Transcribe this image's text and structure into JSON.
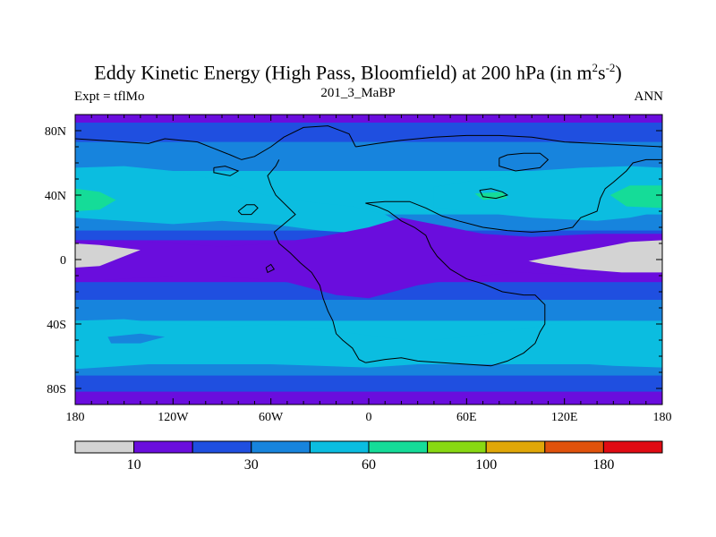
{
  "title": {
    "main": "Eddy Kinetic Energy (High Pass, Bloomfield) at 200 hPa (in m",
    "sup1": "2",
    "mid": "s",
    "sup2": "-2",
    "end": ")"
  },
  "left_label": "Expt = tflMo",
  "center_label": "201_3_MaBP",
  "right_label": "ANN",
  "chart_data": {
    "type": "heatmap",
    "xlim": [
      -180,
      180
    ],
    "ylim": [
      -90,
      90
    ],
    "x_ticks": [
      "180",
      "120W",
      "60W",
      "0",
      "60E",
      "120E",
      "180"
    ],
    "y_ticks": [
      "80N",
      "40N",
      "0",
      "40S",
      "80S"
    ],
    "colorbar": {
      "colors": [
        "#d3d3d3",
        "#6a0ddd",
        "#1f4fe0",
        "#1784dd",
        "#0bbde0",
        "#15dc98",
        "#88d812",
        "#e0a708",
        "#e0520c",
        "#e00b13"
      ],
      "labels": [
        "10",
        "30",
        "60",
        "100",
        "180"
      ]
    },
    "bands": [
      {
        "from": 90,
        "to": 85,
        "color": "#6a0ddd"
      },
      {
        "from": 85,
        "to": 73,
        "color": "#1f4fe0"
      },
      {
        "from": 73,
        "to": 55,
        "color": "#1784dd"
      },
      {
        "from": 55,
        "to": 28,
        "color": "#0bbde0"
      },
      {
        "from": 28,
        "to": 18,
        "color": "#1784dd"
      },
      {
        "from": 18,
        "to": 12,
        "color": "#1f4fe0"
      },
      {
        "from": 12,
        "to": -14,
        "color": "#6a0ddd"
      },
      {
        "from": -14,
        "to": -25,
        "color": "#1f4fe0"
      },
      {
        "from": -25,
        "to": -38,
        "color": "#1784dd"
      },
      {
        "from": -38,
        "to": -65,
        "color": "#0bbde0"
      },
      {
        "from": -65,
        "to": -72,
        "color": "#1784dd"
      },
      {
        "from": -72,
        "to": -82,
        "color": "#1f4fe0"
      },
      {
        "from": -82,
        "to": -90,
        "color": "#6a0ddd"
      }
    ],
    "regions": [
      {
        "color": "#0bbde0",
        "points": [
          [
            -180,
            57
          ],
          [
            -150,
            58
          ],
          [
            -120,
            55
          ],
          [
            -95,
            50
          ],
          [
            -75,
            43
          ],
          [
            -55,
            38
          ],
          [
            -30,
            35
          ],
          [
            -10,
            33
          ],
          [
            10,
            28
          ],
          [
            20,
            22
          ],
          [
            0,
            16
          ],
          [
            -30,
            18
          ],
          [
            -60,
            22
          ],
          [
            -90,
            24
          ],
          [
            -120,
            22
          ],
          [
            -150,
            24
          ],
          [
            -180,
            26
          ]
        ]
      },
      {
        "color": "#0bbde0",
        "points": [
          [
            40,
            45
          ],
          [
            70,
            50
          ],
          [
            100,
            55
          ],
          [
            130,
            57
          ],
          [
            160,
            58
          ],
          [
            180,
            57
          ],
          [
            180,
            30
          ],
          [
            160,
            26
          ],
          [
            140,
            24
          ],
          [
            120,
            25
          ],
          [
            100,
            26
          ],
          [
            80,
            28
          ],
          [
            60,
            30
          ],
          [
            40,
            32
          ]
        ]
      },
      {
        "color": "#15dc98",
        "points": [
          [
            -180,
            44
          ],
          [
            -165,
            42
          ],
          [
            -155,
            37
          ],
          [
            -165,
            31
          ],
          [
            -180,
            30
          ]
        ]
      },
      {
        "color": "#15dc98",
        "points": [
          [
            180,
            46
          ],
          [
            160,
            46
          ],
          [
            148,
            40
          ],
          [
            158,
            33
          ],
          [
            180,
            32
          ]
        ]
      },
      {
        "color": "#15dc98",
        "points": [
          [
            65,
            41
          ],
          [
            82,
            42
          ],
          [
            85,
            38
          ],
          [
            70,
            37
          ]
        ]
      },
      {
        "color": "#6a0ddd",
        "points": [
          [
            -180,
            12
          ],
          [
            -150,
            12
          ],
          [
            -120,
            10
          ],
          [
            -90,
            8
          ],
          [
            -60,
            10
          ],
          [
            -30,
            14
          ],
          [
            0,
            20
          ],
          [
            20,
            26
          ],
          [
            40,
            22
          ],
          [
            70,
            16
          ],
          [
            100,
            14
          ],
          [
            140,
            16
          ],
          [
            180,
            16
          ],
          [
            180,
            -13
          ],
          [
            150,
            -11
          ],
          [
            120,
            -9
          ],
          [
            90,
            -8
          ],
          [
            60,
            -11
          ],
          [
            30,
            -16
          ],
          [
            0,
            -24
          ],
          [
            -20,
            -22
          ],
          [
            -50,
            -14
          ],
          [
            -90,
            -10
          ],
          [
            -120,
            -10
          ],
          [
            -150,
            -12
          ],
          [
            -180,
            -14
          ]
        ]
      },
      {
        "color": "#d3d3d3",
        "points": [
          [
            -180,
            10
          ],
          [
            -165,
            9
          ],
          [
            -140,
            6
          ],
          [
            -150,
            2
          ],
          [
            -165,
            -4
          ],
          [
            -180,
            -5
          ]
        ]
      },
      {
        "color": "#d3d3d3",
        "points": [
          [
            180,
            12
          ],
          [
            160,
            11
          ],
          [
            140,
            7
          ],
          [
            118,
            3
          ],
          [
            98,
            -1
          ],
          [
            108,
            -3
          ],
          [
            130,
            -6
          ],
          [
            155,
            -8
          ],
          [
            180,
            -8
          ]
        ]
      },
      {
        "color": "#0bbde0",
        "points": [
          [
            -180,
            -38
          ],
          [
            -150,
            -37
          ],
          [
            -120,
            -40
          ],
          [
            -90,
            -42
          ],
          [
            -60,
            -40
          ],
          [
            -30,
            -43
          ],
          [
            0,
            -47
          ],
          [
            30,
            -51
          ],
          [
            60,
            -48
          ],
          [
            100,
            -42
          ],
          [
            130,
            -38
          ],
          [
            160,
            -38
          ],
          [
            180,
            -40
          ],
          [
            180,
            -67
          ],
          [
            150,
            -66
          ],
          [
            120,
            -64
          ],
          [
            90,
            -62
          ],
          [
            60,
            -63
          ],
          [
            30,
            -65
          ],
          [
            0,
            -67
          ],
          [
            -30,
            -66
          ],
          [
            -60,
            -65
          ],
          [
            -90,
            -63
          ],
          [
            -120,
            -64
          ],
          [
            -150,
            -66
          ],
          [
            -180,
            -68
          ]
        ]
      },
      {
        "color": "#1784dd",
        "points": [
          [
            -160,
            -48
          ],
          [
            -140,
            -46
          ],
          [
            -125,
            -48
          ],
          [
            -140,
            -52
          ],
          [
            -158,
            -52
          ]
        ]
      }
    ],
    "outlines": [
      [
        [
          -180,
          75
        ],
        [
          -165,
          74
        ],
        [
          -150,
          73
        ],
        [
          -135,
          72
        ],
        [
          -125,
          75
        ],
        [
          -105,
          73
        ],
        [
          -95,
          69
        ],
        [
          -85,
          65
        ],
        [
          -78,
          62
        ],
        [
          -70,
          64
        ],
        [
          -60,
          70
        ],
        [
          -52,
          76
        ],
        [
          -40,
          82
        ],
        [
          -25,
          83
        ],
        [
          -12,
          78
        ],
        [
          -8,
          70
        ]
      ],
      [
        [
          -60,
          46
        ],
        [
          -62,
          52
        ],
        [
          -57,
          58
        ],
        [
          -55,
          62
        ]
      ],
      [
        [
          -60,
          46
        ],
        [
          -57,
          40
        ],
        [
          -50,
          33
        ],
        [
          -45,
          28
        ],
        [
          -52,
          22
        ],
        [
          -58,
          17
        ]
      ],
      [
        [
          -58,
          17
        ],
        [
          -55,
          10
        ],
        [
          -48,
          4
        ],
        [
          -42,
          -2
        ],
        [
          -35,
          -8
        ],
        [
          -30,
          -16
        ],
        [
          -28,
          -24
        ],
        [
          -25,
          -32
        ],
        [
          -22,
          -38
        ],
        [
          -20,
          -46
        ],
        [
          -16,
          -50
        ],
        [
          -10,
          -55
        ],
        [
          -6,
          -62
        ],
        [
          -2,
          -64
        ]
      ],
      [
        [
          -2,
          -64
        ],
        [
          10,
          -62
        ],
        [
          20,
          -61
        ],
        [
          30,
          -63
        ],
        [
          45,
          -64
        ],
        [
          60,
          -65
        ],
        [
          75,
          -66
        ],
        [
          85,
          -63
        ],
        [
          95,
          -58
        ],
        [
          102,
          -52
        ],
        [
          105,
          -45
        ],
        [
          108,
          -40
        ],
        [
          108,
          -28
        ],
        [
          102,
          -22
        ],
        [
          95,
          -22
        ]
      ],
      [
        [
          95,
          -22
        ],
        [
          82,
          -20
        ],
        [
          70,
          -15
        ],
        [
          60,
          -12
        ],
        [
          50,
          -6
        ],
        [
          42,
          2
        ],
        [
          38,
          8
        ],
        [
          35,
          15
        ],
        [
          28,
          20
        ],
        [
          20,
          24
        ],
        [
          12,
          30
        ],
        [
          5,
          33
        ],
        [
          -2,
          35
        ],
        [
          10,
          36
        ],
        [
          25,
          36
        ],
        [
          35,
          32
        ],
        [
          45,
          27
        ],
        [
          55,
          24
        ],
        [
          70,
          20
        ],
        [
          85,
          18
        ],
        [
          100,
          17
        ],
        [
          115,
          18
        ],
        [
          125,
          20
        ],
        [
          130,
          26
        ],
        [
          140,
          30
        ],
        [
          142,
          38
        ],
        [
          145,
          44
        ],
        [
          150,
          48
        ],
        [
          158,
          55
        ],
        [
          162,
          60
        ],
        [
          170,
          62
        ],
        [
          180,
          62
        ]
      ],
      [
        [
          -8,
          70
        ],
        [
          5,
          72
        ],
        [
          20,
          74
        ],
        [
          40,
          76
        ],
        [
          60,
          77
        ],
        [
          80,
          77
        ],
        [
          100,
          76
        ],
        [
          120,
          73
        ],
        [
          140,
          72
        ],
        [
          160,
          71
        ],
        [
          180,
          70
        ]
      ],
      [
        [
          80,
          63
        ],
        [
          80,
          58
        ],
        [
          90,
          55
        ],
        [
          105,
          57
        ],
        [
          110,
          62
        ],
        [
          105,
          66
        ],
        [
          95,
          66
        ],
        [
          85,
          65
        ],
        [
          80,
          63
        ]
      ],
      [
        [
          68,
          43
        ],
        [
          75,
          44
        ],
        [
          82,
          42
        ],
        [
          85,
          40
        ],
        [
          78,
          38
        ],
        [
          70,
          39
        ],
        [
          68,
          43
        ]
      ],
      [
        [
          -80,
          30
        ],
        [
          -75,
          34
        ],
        [
          -70,
          34
        ],
        [
          -68,
          32
        ],
        [
          -72,
          28
        ],
        [
          -78,
          28
        ],
        [
          -80,
          30
        ]
      ],
      [
        [
          -95,
          57
        ],
        [
          -88,
          58
        ],
        [
          -80,
          55
        ],
        [
          -85,
          52
        ],
        [
          -95,
          54
        ],
        [
          -95,
          57
        ]
      ],
      [
        [
          -63,
          -5
        ],
        [
          -60,
          -3
        ],
        [
          -58,
          -6
        ],
        [
          -62,
          -8
        ],
        [
          -63,
          -5
        ]
      ]
    ]
  }
}
